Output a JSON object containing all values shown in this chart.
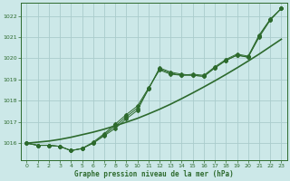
{
  "background_color": "#cce8e8",
  "grid_color": "#aacccc",
  "line_color": "#2d6a2d",
  "title": "Graphe pression niveau de la mer (hPa)",
  "xlim": [
    -0.5,
    23.5
  ],
  "ylim": [
    1015.2,
    1022.6
  ],
  "yticks": [
    1016,
    1017,
    1018,
    1019,
    1020,
    1021,
    1022
  ],
  "xticks": [
    0,
    1,
    2,
    3,
    4,
    5,
    6,
    7,
    8,
    9,
    10,
    11,
    12,
    13,
    14,
    15,
    16,
    17,
    18,
    19,
    20,
    21,
    22,
    23
  ],
  "hours": [
    0,
    1,
    2,
    3,
    4,
    5,
    6,
    7,
    8,
    9,
    10,
    11,
    12,
    13,
    14,
    15,
    16,
    17,
    18,
    19,
    20,
    21,
    22,
    23
  ],
  "line1": [
    1016.0,
    1015.9,
    1015.9,
    1015.85,
    1015.65,
    1015.75,
    1016.0,
    1016.35,
    1016.7,
    1017.15,
    1017.55,
    1018.55,
    1019.55,
    1019.35,
    1019.25,
    1019.2,
    1019.15,
    1019.55,
    1019.9,
    1020.15,
    1020.05,
    1021.0,
    1021.8,
    1022.35
  ],
  "line2": [
    1016.0,
    1015.9,
    1015.9,
    1015.85,
    1015.65,
    1015.75,
    1016.05,
    1016.45,
    1016.9,
    1017.35,
    1017.75,
    1018.6,
    1019.45,
    1019.25,
    1019.2,
    1019.25,
    1019.2,
    1019.6,
    1019.95,
    1020.2,
    1020.1,
    1021.1,
    1021.85,
    1022.35
  ],
  "line3": [
    1016.0,
    1015.9,
    1015.9,
    1015.85,
    1015.65,
    1015.75,
    1016.0,
    1016.4,
    1016.8,
    1017.25,
    1017.65,
    1018.55,
    1019.5,
    1019.3,
    1019.2,
    1019.2,
    1019.15,
    1019.55,
    1019.9,
    1020.15,
    1020.05,
    1021.05,
    1021.82,
    1022.35
  ],
  "smooth_line": [
    1016.0,
    1016.05,
    1016.1,
    1016.18,
    1016.28,
    1016.4,
    1016.52,
    1016.66,
    1016.82,
    1016.99,
    1017.17,
    1017.38,
    1017.6,
    1017.84,
    1018.1,
    1018.37,
    1018.65,
    1018.94,
    1019.24,
    1019.55,
    1019.87,
    1020.2,
    1020.55,
    1020.9
  ]
}
